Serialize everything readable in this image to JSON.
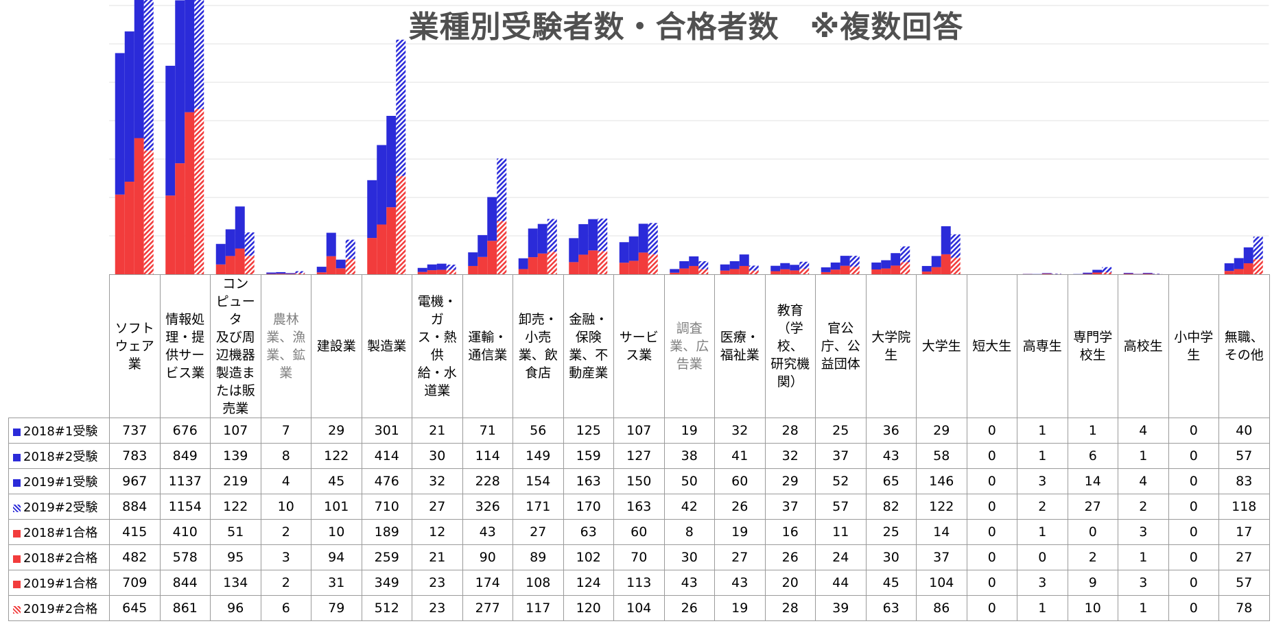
{
  "chart_data": {
    "type": "bar",
    "title": "業種別受験者数・合格者数　※複数回答",
    "grid": true,
    "ylim": [
      0,
      1400
    ],
    "categories": [
      "ソフトウェア業",
      "情報処理・提供サービス業",
      "コンピュータ及び周辺機器製造または販売業",
      "農林業、漁業、鉱業",
      "建設業",
      "製造業",
      "電機・ガス・熱供給・水道業",
      "運輸・通信業",
      "卸売・小売業、飲食店",
      "金融・保険業、不動産業",
      "サービス業",
      "調査業、広告業",
      "医療・福祉業",
      "教育（学校、研究機関）",
      "官公庁、公益団体",
      "大学院生",
      "大学生",
      "短大生",
      "高専生",
      "専門学校生",
      "高校生",
      "小中学生",
      "無職、その他"
    ],
    "category_labels": [
      [
        "ソフト",
        "ウェア",
        "業"
      ],
      [
        "情報処",
        "理・提",
        "供サー",
        "ビス業"
      ],
      [
        "コン",
        "ピュータ",
        "及び周",
        "辺機器",
        "製造ま",
        "たは販",
        "売業"
      ],
      [
        "農林",
        "業、漁",
        "業、鉱",
        "業"
      ],
      [
        "建設業"
      ],
      [
        "製造業"
      ],
      [
        "電機・ガ",
        "ス・熱供",
        "給・水",
        "道業"
      ],
      [
        "運輸・",
        "通信業"
      ],
      [
        "卸売・",
        "小売",
        "業、飲",
        "食店"
      ],
      [
        "金融・",
        "保険",
        "業、不",
        "動産業"
      ],
      [
        "サービ",
        "ス業"
      ],
      [
        "調査",
        "業、広",
        "告業"
      ],
      [
        "医療・",
        "福祉業"
      ],
      [
        "教育",
        "（学校、",
        "研究機",
        "関）"
      ],
      [
        "官公",
        "庁、公",
        "益団体"
      ],
      [
        "大学院",
        "生"
      ],
      [
        "大学生"
      ],
      [
        "短大生"
      ],
      [
        "高専生"
      ],
      [
        "専門学",
        "校生"
      ],
      [
        "高校生"
      ],
      [
        "小中学",
        "生"
      ],
      [
        "無職、",
        "その他"
      ]
    ],
    "gray_categories": [
      3,
      11
    ],
    "series": [
      {
        "name": "2018#1受験",
        "values": [
          737,
          676,
          107,
          7,
          29,
          301,
          21,
          71,
          56,
          125,
          107,
          19,
          32,
          28,
          25,
          36,
          29,
          0,
          1,
          1,
          4,
          0,
          40
        ],
        "color": "#2b2bd9",
        "pattern": "solid"
      },
      {
        "name": "2018#2受験",
        "values": [
          783,
          849,
          139,
          8,
          122,
          414,
          30,
          114,
          149,
          159,
          127,
          38,
          41,
          32,
          37,
          43,
          58,
          0,
          1,
          6,
          1,
          0,
          57
        ],
        "color": "#2b2bd9",
        "pattern": "solid"
      },
      {
        "name": "2019#1受験",
        "values": [
          967,
          1137,
          219,
          4,
          45,
          476,
          32,
          228,
          154,
          163,
          150,
          50,
          60,
          29,
          52,
          65,
          146,
          0,
          3,
          14,
          4,
          0,
          83
        ],
        "color": "#2b2bd9",
        "pattern": "solid"
      },
      {
        "name": "2019#2受験",
        "values": [
          884,
          1154,
          122,
          10,
          101,
          710,
          27,
          326,
          171,
          170,
          163,
          42,
          26,
          37,
          57,
          82,
          122,
          0,
          2,
          27,
          2,
          0,
          118
        ],
        "color": "#2b2bd9",
        "pattern": "hatch"
      },
      {
        "name": "2018#1合格",
        "values": [
          415,
          410,
          51,
          2,
          10,
          189,
          12,
          43,
          27,
          63,
          60,
          8,
          19,
          16,
          11,
          25,
          14,
          0,
          1,
          0,
          3,
          0,
          17
        ],
        "color": "#f23c3c",
        "pattern": "solid"
      },
      {
        "name": "2018#2合格",
        "values": [
          482,
          578,
          95,
          3,
          94,
          259,
          21,
          90,
          89,
          102,
          70,
          30,
          27,
          26,
          24,
          30,
          37,
          0,
          0,
          2,
          1,
          0,
          27
        ],
        "color": "#f23c3c",
        "pattern": "solid"
      },
      {
        "name": "2019#1合格",
        "values": [
          709,
          844,
          134,
          2,
          31,
          349,
          23,
          174,
          108,
          124,
          113,
          43,
          43,
          20,
          44,
          45,
          104,
          0,
          3,
          9,
          3,
          0,
          57
        ],
        "color": "#f23c3c",
        "pattern": "solid"
      },
      {
        "name": "2019#2合格",
        "values": [
          645,
          861,
          96,
          6,
          79,
          512,
          23,
          277,
          117,
          120,
          104,
          26,
          19,
          28,
          39,
          63,
          86,
          0,
          1,
          10,
          1,
          0,
          78
        ],
        "color": "#f23c3c",
        "pattern": "hatch"
      }
    ]
  }
}
